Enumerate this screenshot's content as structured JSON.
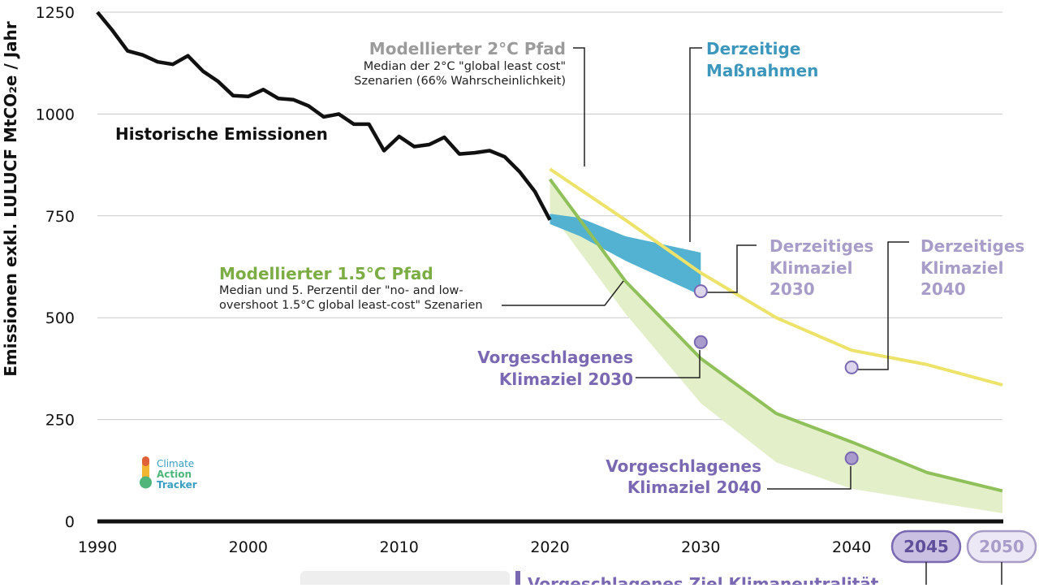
{
  "chart_data": {
    "type": "line",
    "title": "",
    "xlabel": "",
    "ylabel": "Emissionen exkl. LULUCF MtCO₂e / Jahr",
    "xlim": [
      1990,
      2050
    ],
    "ylim": [
      0,
      1250
    ],
    "x_ticks": [
      "1990",
      "2000",
      "2010",
      "2020",
      "2030",
      "2040",
      "2045",
      "2050"
    ],
    "y_ticks": [
      "0",
      "250",
      "500",
      "750",
      "1000",
      "1250"
    ],
    "grid": true,
    "series": [
      {
        "name": "Historische Emissionen",
        "color": "#111111",
        "x": [
          1990,
          1991,
          1992,
          1993,
          1994,
          1995,
          1996,
          1997,
          1998,
          1999,
          2000,
          2001,
          2002,
          2003,
          2004,
          2005,
          2006,
          2007,
          2008,
          2009,
          2010,
          2011,
          2012,
          2013,
          2014,
          2015,
          2016,
          2017,
          2018,
          2019,
          2020
        ],
        "y": [
          1250,
          1205,
          1155,
          1145,
          1128,
          1122,
          1143,
          1105,
          1080,
          1045,
          1043,
          1060,
          1038,
          1035,
          1020,
          993,
          1000,
          975,
          975,
          910,
          945,
          920,
          925,
          943,
          902,
          905,
          910,
          895,
          858,
          810,
          740
        ]
      },
      {
        "name": "Modellierter 2°C Pfad",
        "color": "#ede26a",
        "x": [
          2020,
          2025,
          2030,
          2035,
          2040,
          2045,
          2050
        ],
        "y": [
          865,
          740,
          610,
          500,
          420,
          385,
          335
        ]
      },
      {
        "name": "Modellierter 1.5°C Pfad",
        "color": "#8fc05a",
        "x": [
          2020,
          2025,
          2030,
          2035,
          2040,
          2045,
          2050
        ],
        "y": [
          840,
          590,
          400,
          265,
          195,
          120,
          75
        ]
      }
    ],
    "bands": [
      {
        "name": "Derzeitige Maßnahmen",
        "color": "#4aaed0",
        "x": [
          2020,
          2022,
          2025,
          2030
        ],
        "upper": [
          755,
          745,
          700,
          660
        ],
        "lower": [
          730,
          700,
          640,
          555
        ]
      },
      {
        "name": "Modellierter 1.5°C Pfad (5. Perzentil)",
        "color": "#e3efc9",
        "x": [
          2020,
          2025,
          2030,
          2035,
          2040,
          2045,
          2050
        ],
        "upper": [
          840,
          590,
          400,
          265,
          195,
          120,
          75
        ],
        "lower": [
          760,
          510,
          290,
          145,
          80,
          50,
          20
        ]
      }
    ],
    "points": [
      {
        "name": "Derzeitiges Klimaziel 2030",
        "x": 2030,
        "y": 565,
        "fill": "#dcd5ec"
      },
      {
        "name": "Derzeitiges Klimaziel 2040",
        "x": 2040,
        "y": 378,
        "fill": "#dcd5ec"
      },
      {
        "name": "Vorgeschlagenes Klimaziel 2030",
        "x": 2030,
        "y": 440,
        "fill": "#a99ccd"
      },
      {
        "name": "Vorgeschlagenes Klimaziel 2040",
        "x": 2040,
        "y": 155,
        "fill": "#a99ccd"
      }
    ],
    "annotations": {
      "historic": "Historische Emissionen",
      "path2c_title": "Modellierter 2°C Pfad",
      "path2c_line1": "Median der 2°C \"global least cost\"",
      "path2c_line2": "Szenarien (66% Wahrscheinlichkeit)",
      "measures_line1": "Derzeitige",
      "measures_line2": "Maßnahmen",
      "path15_title": "Modellierter 1.5°C Pfad",
      "path15_line1": "Median und 5. Perzentil der \"no- and low-",
      "path15_line2": "overshoot 1.5°C global least-cost\" Szenarien",
      "current2030_line1": "Derzeitiges",
      "current2030_line2": "Klimaziel",
      "current2030_line3": "2030",
      "current2040_line1": "Derzeitiges",
      "current2040_line2": "Klimaziel",
      "current2040_line3": "2040",
      "proposed2030_line1": "Vorgeschlagenes",
      "proposed2030_line2": "Klimaziel 2030",
      "proposed2040_line1": "Vorgeschlagenes",
      "proposed2040_line2": "Klimaziel 2040",
      "bottom_partial": "Vorgeschlagenes Ziel Klimaneutralität"
    },
    "badges": [
      {
        "label": "2045",
        "x": 2045,
        "style": "dark"
      },
      {
        "label": "2050",
        "x": 2050,
        "style": "light"
      }
    ],
    "logo": {
      "line1": "Climate",
      "line2": "Action",
      "line3": "Tracker"
    }
  },
  "colors": {
    "purple_dark": "#7a68b3",
    "purple_light": "#a89cc8",
    "grey_title": "#9b9b9b",
    "blue_title": "#3d97bd",
    "green_title": "#7cad45",
    "axis": "#111111",
    "grid": "#c8c8c8"
  }
}
